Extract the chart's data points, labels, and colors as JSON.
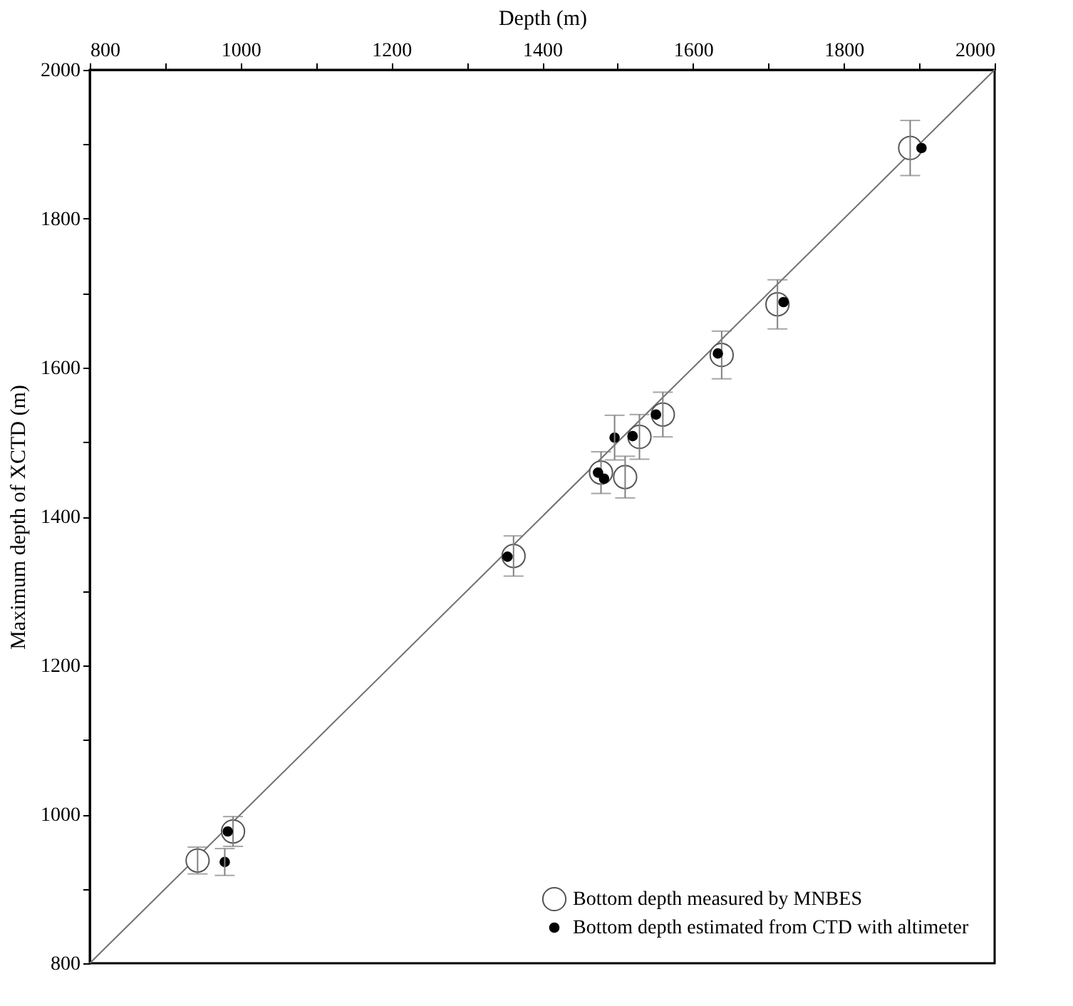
{
  "chart_data": {
    "type": "scatter",
    "xlabel": "Depth (m)",
    "ylabel": "Maximum depth of XCTD (m)",
    "xlim": [
      800,
      2000
    ],
    "ylim": [
      800,
      2000
    ],
    "xticks": [
      800,
      {
        "value": 900,
        "label": null
      },
      1000,
      {
        "value": 1100,
        "label": null
      },
      1200,
      {
        "value": 1300,
        "label": null
      },
      1400,
      {
        "value": 1500,
        "label": null
      },
      1600,
      {
        "value": 1700,
        "label": null
      },
      1800,
      {
        "value": 1900,
        "label": null
      },
      2000
    ],
    "yticks": [
      800,
      {
        "value": 900,
        "label": null
      },
      1000,
      {
        "value": 1100,
        "label": null
      },
      1200,
      {
        "value": 1300,
        "label": null
      },
      1400,
      {
        "value": 1500,
        "label": null
      },
      1600,
      {
        "value": 1700,
        "label": null
      },
      1800,
      {
        "value": 1900,
        "label": null
      },
      2000
    ],
    "grid": false,
    "legend": "bottom right",
    "series": [
      {
        "type": "line",
        "color": "#707070",
        "x": [
          800,
          2000
        ],
        "values": [
          800,
          2000
        ]
      },
      {
        "name": "Bottom depth measured by MNBES",
        "color": "#555555",
        "marker": "circle",
        "x": [
          943,
          990,
          1362,
          1478,
          1510,
          1529,
          1560,
          1638,
          1712,
          1888
        ],
        "values": [
          938,
          977,
          1347,
          1459,
          1453,
          1507,
          1537,
          1617,
          1685,
          1895
        ],
        "errors": [
          18,
          20,
          27,
          28,
          28,
          30,
          30,
          32,
          33,
          37
        ]
      },
      {
        "name": "Bottom depth estimated from CTD with altimeter",
        "color": "#000000",
        "marker": "circle",
        "x": [
          983,
          979,
          1354,
          1474,
          1482,
          1496,
          1520,
          1551,
          1633,
          1720,
          1903
        ],
        "values": [
          977,
          936,
          1346,
          1459,
          1451,
          1506,
          1508,
          1537,
          1619,
          1688,
          1895
        ],
        "errors": [
          null,
          18,
          null,
          null,
          null,
          30,
          null,
          null,
          null,
          null,
          null
        ]
      }
    ]
  }
}
